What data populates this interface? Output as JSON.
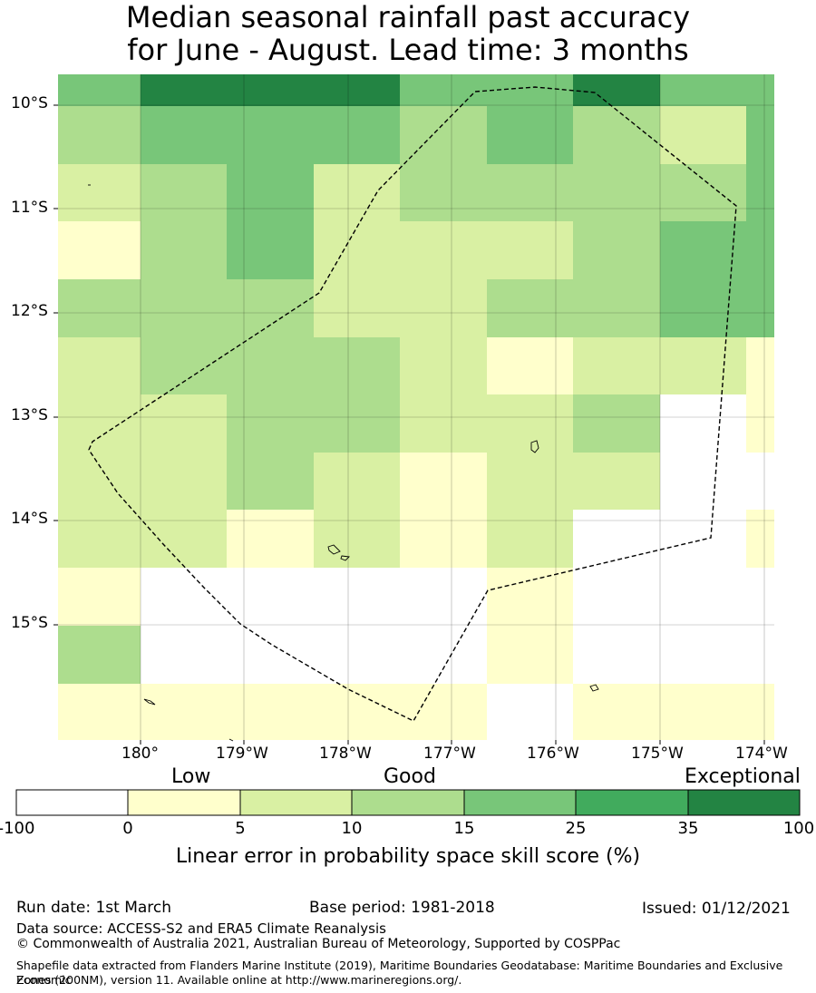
{
  "title_line1": "Median seasonal rainfall past accuracy",
  "title_line2": "for June - August. Lead time: 3 months",
  "map": {
    "lat_labels": [
      "10°S",
      "11°S",
      "12°S",
      "13°S",
      "14°S",
      "15°S"
    ],
    "lon_labels": [
      "180°",
      "179°W",
      "178°W",
      "177°W",
      "176°W",
      "175°W",
      "174°W"
    ],
    "grid_rows": [
      [
        4,
        6,
        6,
        6,
        4,
        4,
        6,
        4,
        4
      ],
      [
        3,
        4,
        4,
        4,
        3,
        4,
        3,
        2,
        4
      ],
      [
        2,
        3,
        4,
        2,
        3,
        3,
        3,
        3,
        4
      ],
      [
        1,
        3,
        4,
        2,
        2,
        2,
        3,
        4,
        4
      ],
      [
        3,
        3,
        3,
        2,
        2,
        3,
        3,
        4,
        4
      ],
      [
        2,
        3,
        3,
        3,
        2,
        1,
        2,
        2,
        1
      ],
      [
        2,
        2,
        3,
        3,
        2,
        2,
        3,
        0,
        1
      ],
      [
        2,
        2,
        3,
        2,
        1,
        2,
        2,
        0,
        0
      ],
      [
        2,
        2,
        1,
        2,
        1,
        2,
        0,
        0,
        1
      ],
      [
        1,
        0,
        0,
        0,
        0,
        1,
        0,
        0,
        0
      ],
      [
        3,
        0,
        0,
        0,
        0,
        1,
        0,
        0,
        0
      ],
      [
        1,
        1,
        1,
        1,
        1,
        0,
        1,
        1,
        1
      ]
    ]
  },
  "legend": {
    "category_low": "Low",
    "category_good": "Good",
    "category_exceptional": "Exceptional",
    "ticks": [
      "-100",
      "0",
      "5",
      "10",
      "15",
      "25",
      "35",
      "100"
    ],
    "colors": [
      "#ffffff",
      "#ffffcc",
      "#d9f0a3",
      "#addd8e",
      "#78c679",
      "#41ab5d",
      "#238443"
    ],
    "axis_label": "Linear error in probability space skill score (%)"
  },
  "footer": {
    "run_date": "Run date: 1st March",
    "base_period": "Base period: 1981-2018",
    "issued": "Issued: 01/12/2021",
    "data_source": "Data source: ACCESS-S2 and ERA5 Climate Reanalysis",
    "copyright": "© Commonwealth of Australia 2021, Australian Bureau of Meteorology, Supported by COSPPac",
    "shapefile_line1": "Shapefile data extracted from Flanders Marine Institute (2019), Maritime Boundaries Geodatabase: Maritime Boundaries and Exclusive Economic",
    "shapefile_line2": "Zones (200NM), version 11. Available online at http://www.marineregions.org/."
  }
}
